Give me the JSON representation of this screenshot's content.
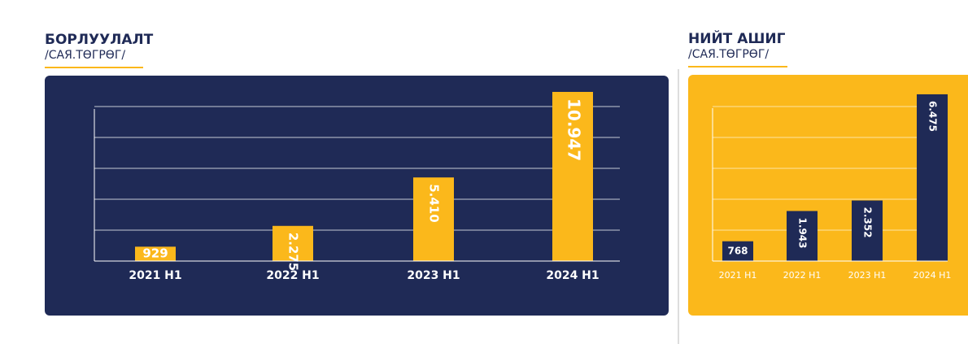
{
  "chart_data": [
    {
      "type": "bar",
      "title": "БОРЛУУЛАЛТ",
      "subtitle": "/САЯ.ТӨГРӨГ/",
      "categories": [
        "2021 H1",
        "2022 H1",
        "2023 H1",
        "2024 H1"
      ],
      "values": [
        929,
        2275,
        5410,
        10947
      ],
      "value_labels": [
        "929",
        "2.275",
        "5.410",
        "10.947"
      ],
      "color": "#fbb81b",
      "ylim": [
        0,
        11000
      ],
      "yticks": [
        0,
        2000,
        4000,
        6000,
        8000,
        10000
      ],
      "grid": true
    },
    {
      "type": "bar",
      "title": "НИЙТ АШИГ",
      "subtitle": "/САЯ.ТӨГРӨГ/",
      "categories": [
        "2021 H1",
        "2022 H1",
        "2023 H1",
        "2024 H1"
      ],
      "values": [
        768,
        1943,
        2352,
        6475
      ],
      "value_labels": [
        "768",
        "1.943",
        "2.352",
        "6.475"
      ],
      "color": "#1f2a56",
      "ylim": [
        0,
        6600
      ],
      "yticks": [
        0,
        1200,
        2400,
        3600,
        4800,
        6000
      ],
      "grid": true
    }
  ]
}
